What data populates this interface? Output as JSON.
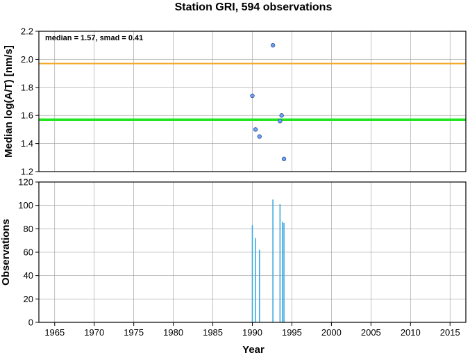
{
  "title": "Station GRI, 594 observations",
  "xlabel": "Year",
  "x_range": [
    1963,
    2017
  ],
  "x_ticks": [
    1965,
    1970,
    1975,
    1980,
    1985,
    1990,
    1995,
    2000,
    2005,
    2010,
    2015
  ],
  "chart_data": [
    {
      "type": "scatter",
      "ylabel": "Median log(A/T) [nm/s]",
      "ylim": [
        1.2,
        2.2
      ],
      "y_ticks": [
        1.2,
        1.4,
        1.6,
        1.8,
        2.0,
        2.2
      ],
      "y_tick_labels": [
        "1.2",
        "1.4",
        "1.6",
        "1.8",
        "2.0",
        "2.2"
      ],
      "grid": true,
      "annotation": "median = 1.57, smad = 0.41",
      "reference_lines": [
        {
          "value": 1.97,
          "color": "#f5a623"
        },
        {
          "value": 1.57,
          "color": "#22e622"
        }
      ],
      "point_color": "#6fa3f0",
      "points": [
        {
          "x": 1990.0,
          "y": 1.74
        },
        {
          "x": 1990.4,
          "y": 1.5
        },
        {
          "x": 1990.9,
          "y": 1.45
        },
        {
          "x": 1992.6,
          "y": 2.1
        },
        {
          "x": 1993.5,
          "y": 1.56
        },
        {
          "x": 1993.7,
          "y": 1.6
        },
        {
          "x": 1994.0,
          "y": 1.29
        }
      ]
    },
    {
      "type": "bar",
      "ylabel": "Observations",
      "ylim": [
        0,
        120
      ],
      "y_ticks": [
        0,
        20,
        40,
        60,
        80,
        100,
        120
      ],
      "y_tick_labels": [
        "0",
        "20",
        "40",
        "60",
        "80",
        "100",
        "120"
      ],
      "grid": true,
      "bar_color": "#3fa9e0",
      "bars": [
        {
          "x": 1990.0,
          "y": 83
        },
        {
          "x": 1990.4,
          "y": 72
        },
        {
          "x": 1990.9,
          "y": 62
        },
        {
          "x": 1992.6,
          "y": 105
        },
        {
          "x": 1993.5,
          "y": 101
        },
        {
          "x": 1993.8,
          "y": 86
        },
        {
          "x": 1994.0,
          "y": 85
        }
      ]
    }
  ]
}
